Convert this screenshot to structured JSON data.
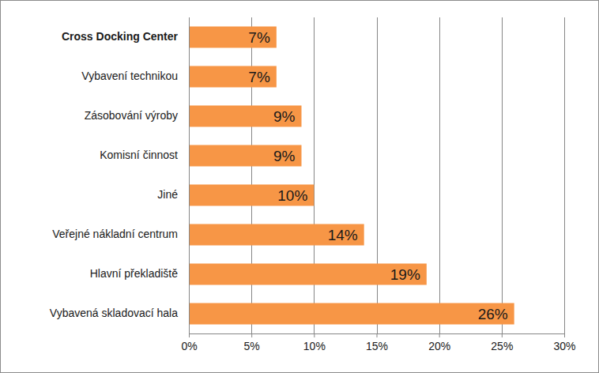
{
  "chart_data": {
    "type": "bar",
    "orientation": "horizontal",
    "categories": [
      "Cross Docking Center",
      "Vybavení technikou",
      "Zásobování výroby",
      "Komisní činnost",
      "Jiné",
      "Veřejné nákladní centrum",
      "Hlavní překladiště",
      "Vybavená skladovací hala"
    ],
    "values": [
      7,
      7,
      9,
      9,
      10,
      14,
      19,
      26
    ],
    "value_labels": [
      "7%",
      "7%",
      "9%",
      "9%",
      "10%",
      "14%",
      "19%",
      "26%"
    ],
    "data_labels": true,
    "color": "#f79646",
    "xlim": [
      0,
      30
    ],
    "xticks": [
      {
        "value": 0,
        "label": "0%"
      },
      {
        "value": 5,
        "label": "5%"
      },
      {
        "value": 10,
        "label": "10%"
      },
      {
        "value": 15,
        "label": "15%"
      },
      {
        "value": 20,
        "label": "20%"
      },
      {
        "value": 25,
        "label": "25%"
      },
      {
        "value": 30,
        "label": "30%"
      }
    ],
    "grid": true
  }
}
